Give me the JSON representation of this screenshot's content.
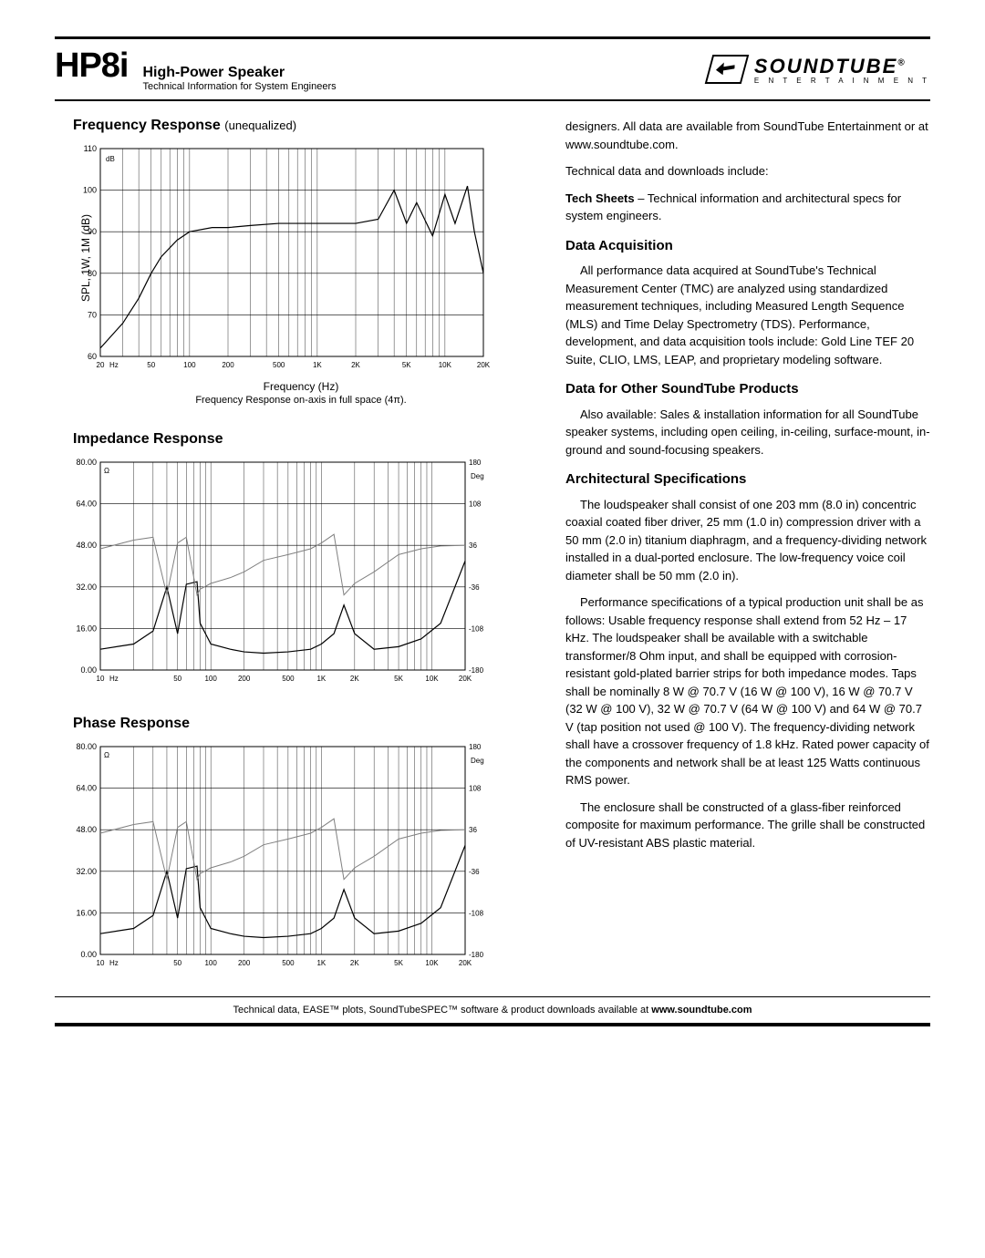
{
  "header": {
    "model": "HP8i",
    "title": "High-Power Speaker",
    "subtitle": "Technical Information for System Engineers",
    "brand_name": "SOUNDTUBE",
    "brand_tag": "E N T E R T A I N M E N T"
  },
  "freq_chart": {
    "heading": "Frequency Response",
    "heading_note": "(unequalized)",
    "y_label": "SPL, 1W, 1M (dB)",
    "x_label": "Frequency (Hz)",
    "caption": "Frequency Response on-axis in full space (4π).",
    "x_min_log": 1.301,
    "x_max_log": 4.301,
    "x_ticks": [
      20,
      50,
      100,
      200,
      500,
      1000,
      2000,
      5000,
      10000,
      20000
    ],
    "x_tick_labels": [
      "20",
      "50",
      "100",
      "200",
      "500",
      "1K",
      "2K",
      "5K",
      "10K",
      "20K"
    ],
    "y_min": 60,
    "y_max": 110,
    "y_step": 10,
    "series": {
      "hz": [
        20,
        30,
        40,
        50,
        60,
        80,
        100,
        150,
        200,
        300,
        500,
        800,
        1000,
        1500,
        2000,
        3000,
        4000,
        5000,
        6000,
        8000,
        10000,
        12000,
        15000,
        17000,
        20000
      ],
      "spl": [
        62,
        68,
        74,
        80,
        84,
        88,
        90,
        91,
        91,
        91.5,
        92,
        92,
        92,
        92,
        92,
        93,
        100,
        92,
        97,
        89,
        99,
        92,
        101,
        90,
        80
      ]
    },
    "line_color": "#000000",
    "grid_color": "#000000",
    "line_width": 1.2
  },
  "imp_chart": {
    "heading": "Impedance Response",
    "x_min_log": 1.0,
    "x_max_log": 4.301,
    "x_ticks": [
      10,
      50,
      100,
      200,
      500,
      1000,
      2000,
      5000,
      10000,
      20000
    ],
    "x_tick_labels": [
      "10",
      "50",
      "100",
      "200",
      "500",
      "1K",
      "2K",
      "5K",
      "10K",
      "20K"
    ],
    "y_min": 0,
    "y_max": 80,
    "y_step": 16,
    "y2_ticks": [
      180,
      108,
      36,
      -36,
      -108,
      -180
    ],
    "y2_label": "Deg",
    "imp": {
      "hz": [
        10,
        20,
        30,
        40,
        50,
        60,
        75,
        80,
        100,
        150,
        200,
        300,
        500,
        800,
        1000,
        1300,
        1600,
        2000,
        3000,
        5000,
        8000,
        12000,
        20000
      ],
      "ohm": [
        8,
        10,
        15,
        32,
        14,
        33,
        34,
        18,
        10,
        8,
        7,
        6.5,
        7,
        8,
        10,
        14,
        25,
        14,
        8,
        9,
        12,
        18,
        42
      ]
    },
    "ph": {
      "hz": [
        10,
        20,
        30,
        40,
        50,
        60,
        75,
        80,
        100,
        150,
        200,
        300,
        500,
        800,
        1000,
        1300,
        1600,
        2000,
        3000,
        5000,
        8000,
        12000,
        20000
      ],
      "deg": [
        30,
        45,
        50,
        -50,
        40,
        50,
        -50,
        -40,
        -30,
        -20,
        -10,
        10,
        20,
        30,
        40,
        55,
        -50,
        -30,
        -10,
        20,
        30,
        35,
        36
      ]
    },
    "imp_color": "#000000",
    "phase_color": "#808080",
    "grid_color": "#000000"
  },
  "phase_chart": {
    "heading": "Phase Response",
    "x_min_log": 1.0,
    "x_max_log": 4.301,
    "x_ticks": [
      10,
      50,
      100,
      200,
      500,
      1000,
      2000,
      5000,
      10000,
      20000
    ],
    "x_tick_labels": [
      "10",
      "50",
      "100",
      "200",
      "500",
      "1K",
      "2K",
      "5K",
      "10K",
      "20K"
    ],
    "y_min": 0,
    "y_max": 80,
    "y_step": 16,
    "y2_ticks": [
      180,
      108,
      36,
      -36,
      -108,
      -180
    ],
    "y2_label": "Deg",
    "imp": {
      "hz": [
        10,
        20,
        30,
        40,
        50,
        60,
        75,
        80,
        100,
        150,
        200,
        300,
        500,
        800,
        1000,
        1300,
        1600,
        2000,
        3000,
        5000,
        8000,
        12000,
        20000
      ],
      "ohm": [
        8,
        10,
        15,
        32,
        14,
        33,
        34,
        18,
        10,
        8,
        7,
        6.5,
        7,
        8,
        10,
        14,
        25,
        14,
        8,
        9,
        12,
        18,
        42
      ]
    },
    "ph": {
      "hz": [
        10,
        20,
        30,
        40,
        50,
        60,
        75,
        80,
        100,
        150,
        200,
        300,
        500,
        800,
        1000,
        1300,
        1600,
        2000,
        3000,
        5000,
        8000,
        12000,
        20000
      ],
      "deg": [
        30,
        45,
        50,
        -50,
        40,
        50,
        -50,
        -40,
        -30,
        -20,
        -10,
        10,
        20,
        30,
        40,
        55,
        -50,
        -30,
        -10,
        20,
        30,
        35,
        36
      ]
    },
    "imp_color": "#000000",
    "phase_color": "#808080",
    "grid_color": "#000000"
  },
  "text": {
    "p1": "designers. All data are available from SoundTube Entertainment or at www.soundtube.com.",
    "p2": "Technical data and downloads include:",
    "p3a": "Tech Sheets",
    "p3b": " – Technical information and architectural specs for system engineers.",
    "h1": "Data Acquisition",
    "p4": "All performance data acquired at SoundTube's Technical Measurement Center (TMC) are analyzed using standardized measurement techniques, including Measured Length Sequence (MLS) and Time Delay Spectrometry (TDS). Performance, development, and data acquisition tools include: Gold Line TEF 20 Suite, CLIO, LMS, LEAP, and proprietary modeling software.",
    "h2": "Data for Other SoundTube Products",
    "p5": "Also available: Sales & installation information for all SoundTube speaker systems, including open ceiling, in-ceiling, surface-mount, in-ground and sound-focusing speakers.",
    "h3": "Architectural Specifications",
    "p6": "The loudspeaker shall consist of one 203 mm (8.0 in) concentric coaxial coated fiber driver, 25 mm (1.0 in) compression driver with a 50 mm (2.0 in) titanium diaphragm, and a frequency-dividing network installed in a dual-ported enclosure.  The low-frequency voice coil diameter shall be 50 mm (2.0 in).",
    "p7": "Performance specifications of a typical production unit shall be as follows: Usable frequency response shall extend from 52 Hz – 17 kHz. The loudspeaker shall be available with a switchable transformer/8 Ohm input, and shall be equipped with corrosion-resistant gold-plated barrier strips for both impedance modes. Taps shall be nominally 8 W @ 70.7 V (16 W @ 100 V), 16 W @ 70.7 V (32 W @ 100 V), 32 W @ 70.7 V (64 W @ 100 V) and 64 W @ 70.7 V (tap position not used @ 100 V). The frequency-dividing network shall have a crossover frequency of 1.8 kHz. Rated power capacity of the components and network shall be at least 125 Watts continuous RMS power.",
    "p8": "The enclosure shall be constructed of a glass-fiber reinforced composite for maximum performance. The grille shall be constructed of UV-resistant ABS plastic material."
  },
  "footer": {
    "a": "Technical data, EASE™ plots, SoundTubeSPEC™ software & product downloads available at ",
    "b": "www.soundtube.com"
  }
}
